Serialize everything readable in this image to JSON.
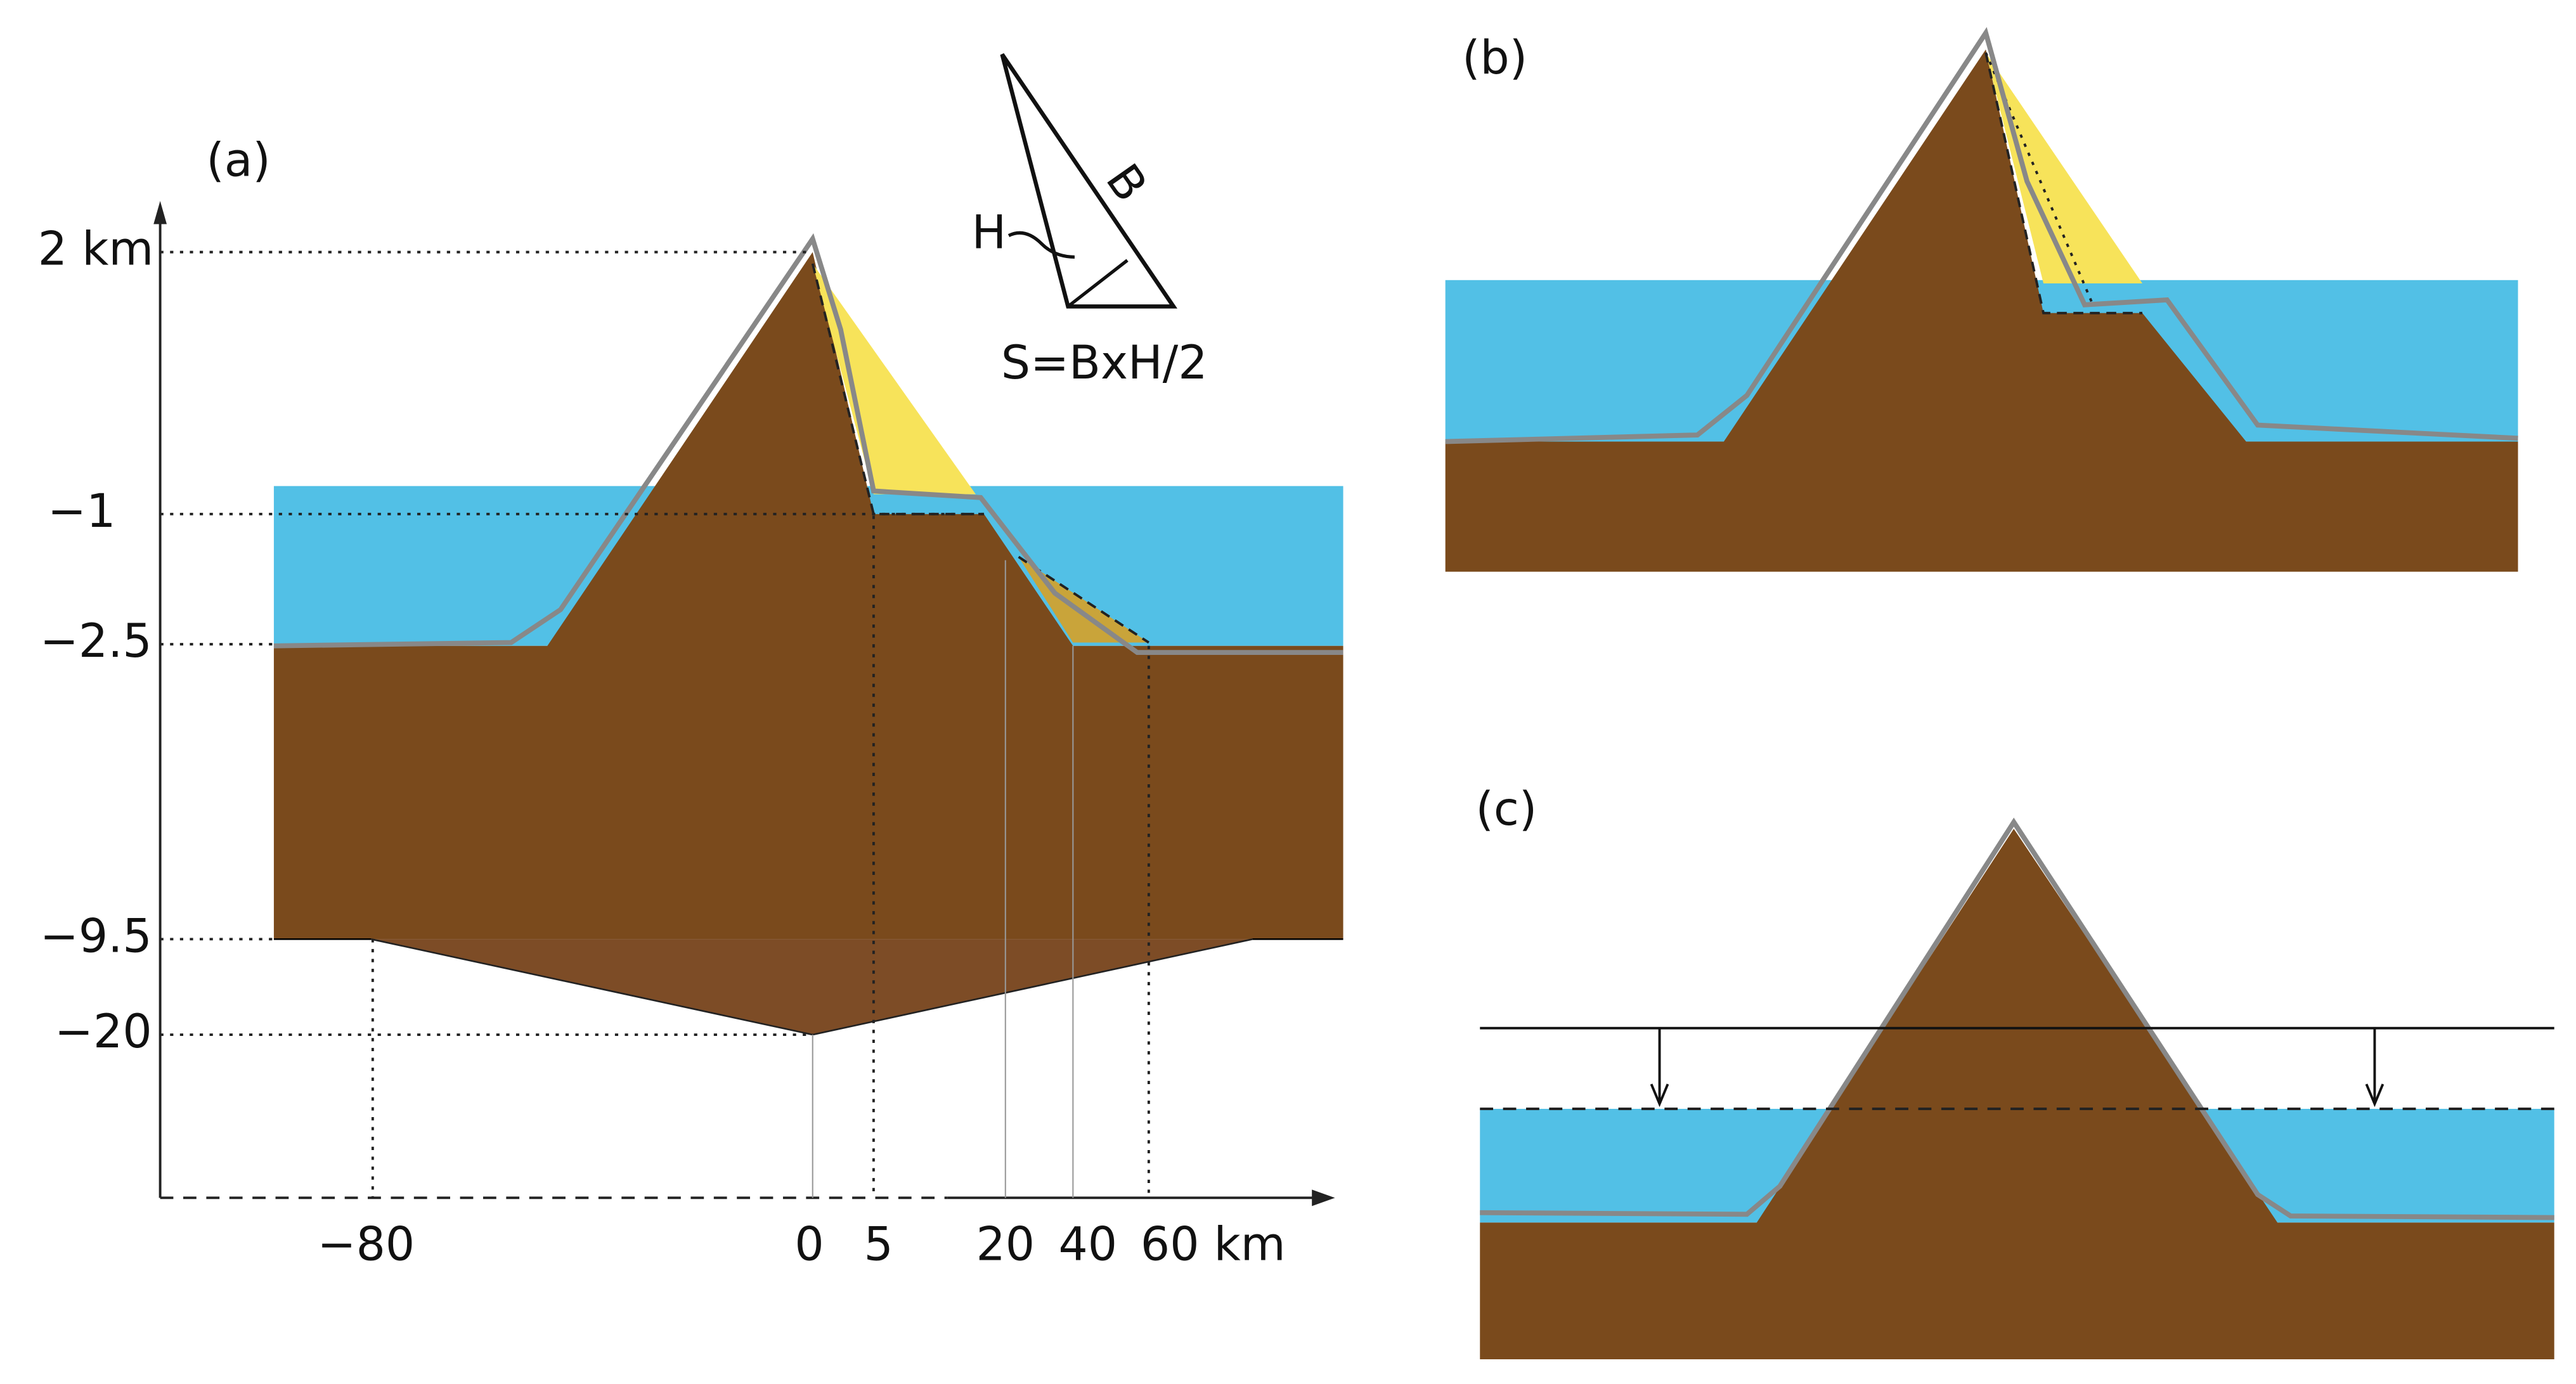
{
  "panels": {
    "a": {
      "label": "(a)",
      "y_labels": [
        "2 km",
        "−1",
        "−2.5",
        "−9.5",
        "−20"
      ],
      "x_labels": [
        "−80",
        "0",
        "5",
        "20",
        "40",
        "60 km"
      ],
      "inset": {
        "h": "H",
        "b": "B",
        "formula": "S=BxH/2"
      }
    },
    "b": {
      "label": "(b)"
    },
    "c": {
      "label": "(c)"
    }
  }
}
